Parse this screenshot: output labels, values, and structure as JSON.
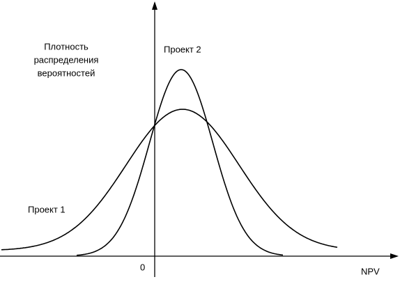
{
  "axes": {
    "y_label": [
      "Плотность",
      "распределения",
      "вероятностей"
    ],
    "x_label": "NPV",
    "origin": "0"
  },
  "curves": [
    {
      "label": "Проект 1"
    },
    {
      "label": "Проект 2"
    }
  ]
}
